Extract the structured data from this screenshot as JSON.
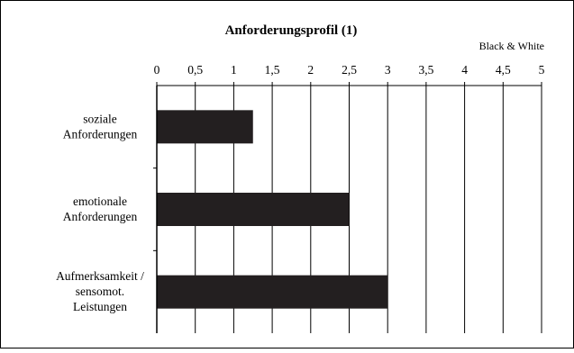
{
  "chart_data": {
    "type": "bar",
    "orientation": "horizontal",
    "title": "Anforderungsprofil (1)",
    "legend": [
      "Black & White"
    ],
    "legend_placement": "top-right",
    "categories": [
      [
        "soziale",
        "Anforderungen"
      ],
      [
        "emotionale",
        "Anforderungen"
      ],
      [
        "Aufmerksamkeit /",
        "sensomot.",
        "Leistungen"
      ]
    ],
    "series": [
      {
        "name": "Black & White",
        "values": [
          1.25,
          2.5,
          3.0
        ],
        "color": "#231f20"
      }
    ],
    "xlim": [
      0,
      5
    ],
    "xticks": [
      0,
      0.5,
      1,
      1.5,
      2,
      2.5,
      3,
      3.5,
      4,
      4.5,
      5
    ],
    "xtick_labels": [
      "0",
      "0,5",
      "1",
      "1,5",
      "2",
      "2,5",
      "3",
      "3,5",
      "4",
      "4,5",
      "5"
    ],
    "x_axis_position": "top",
    "grid": "vertical",
    "xlabel": "",
    "ylabel": ""
  }
}
